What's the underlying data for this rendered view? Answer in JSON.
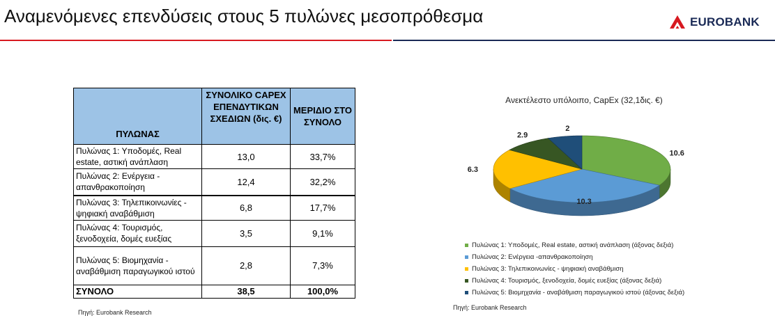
{
  "header": {
    "title": "Αναμενόμενες επενδύσεις στους 5 πυλώνες μεσοπρόθεσμα",
    "brand": "EUROBANK",
    "logo_icon": "eurobank-logo-icon"
  },
  "table": {
    "headers": {
      "pillar": "ΠΥΛΩΝΑΣ",
      "capex": "ΣΥΝΟΛΙΚΟ CAPEX ΕΠΕΝΔΥΤΙΚΩΝ ΣΧΕΔΙΩΝ (δις. €)",
      "share": "ΜΕΡΙΔΙΟ ΣΤΟ ΣΥΝΟΛΟ"
    },
    "rows": [
      {
        "name": "Πυλώνας 1: Υποδομές, Real estate, αστική ανάπλαση",
        "capex": "13,0",
        "share": "33,7%"
      },
      {
        "name": "Πυλώνας 2: Ενέργεια - απανθρακοποίηση",
        "capex": "12,4",
        "share": "32,2%"
      },
      {
        "name": "Πυλώνας 3: Τηλεπικοινωνίες - ψηφιακή αναβάθμιση",
        "capex": "6,8",
        "share": "17,7%"
      },
      {
        "name": "Πυλώνας 4: Τουρισμός, ξενοδοχεία, δομές ευεξίας",
        "capex": "3,5",
        "share": "9,1%"
      },
      {
        "name": "Πυλώνας 5: Βιομηχανία - αναβάθμιση παραγωγικού ιστού",
        "capex": "2,8",
        "share": "7,3%"
      }
    ],
    "total": {
      "name": "ΣΥΝΟΛΟ",
      "capex": "38,5",
      "share": "100,0%"
    },
    "source": "Πηγή: Eurobank Research"
  },
  "chart_data": {
    "type": "pie",
    "title": "Ανεκτέλεστο υπόλοιπο, CapEx (32,1δις. €)",
    "categories": [
      "Πυλώνας 1: Υποδομές, Real estate, αστική ανάπλαση (άξονας δεξιά)",
      "Πυλώνας 2: Ενέργεια -απανθρακοποίηση",
      "Πυλώνας 3: Τηλεπικοινωνίες - ψηφιακή αναβάθμιση",
      "Πυλώνας 4: Τουρισμός, ξενοδοχεία, δομές ευεξίας (άξονας δεξιά)",
      "Πυλώνας 5: Βιομηχανία - αναβάθμιση παραγωγικού ιστού (άξονας δεξιά)"
    ],
    "values": [
      10.6,
      10.3,
      6.3,
      2.9,
      2
    ],
    "data_labels": [
      "10.6",
      "10.3",
      "6.3",
      "2.9",
      "2"
    ],
    "colors": [
      "#70ad47",
      "#5b9bd5",
      "#ffc000",
      "#375623",
      "#1f4e79"
    ],
    "style": "3d",
    "legend_position": "bottom",
    "source": "Πηγή: Eurobank Research"
  }
}
